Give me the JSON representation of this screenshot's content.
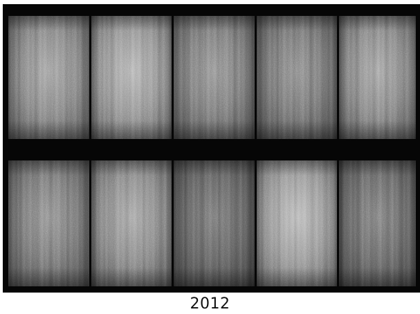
{
  "caption": "2012",
  "background_color": "#ffffff",
  "frame_color": "#060606",
  "panels": [
    {
      "row": 1,
      "col": 1,
      "brightness": 0.52
    },
    {
      "row": 1,
      "col": 2,
      "brightness": 0.58
    },
    {
      "row": 1,
      "col": 3,
      "brightness": 0.47
    },
    {
      "row": 1,
      "col": 4,
      "brightness": 0.45
    },
    {
      "row": 1,
      "col": 5,
      "brightness": 0.52
    },
    {
      "row": 2,
      "col": 1,
      "brightness": 0.46
    },
    {
      "row": 2,
      "col": 2,
      "brightness": 0.53
    },
    {
      "row": 2,
      "col": 3,
      "brightness": 0.38
    },
    {
      "row": 2,
      "col": 4,
      "brightness": 0.6
    },
    {
      "row": 2,
      "col": 5,
      "brightness": 0.4
    }
  ]
}
